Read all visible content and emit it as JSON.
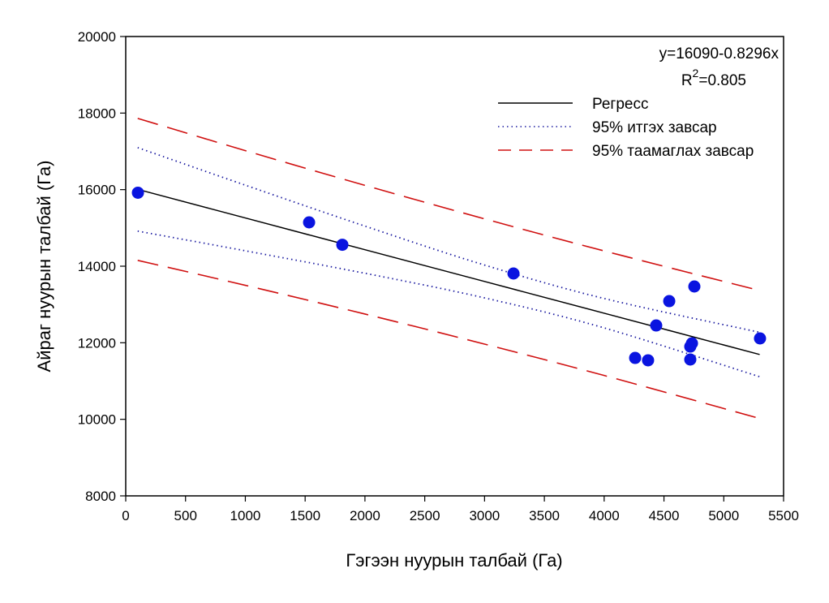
{
  "chart_data": {
    "type": "scatter",
    "xlabel": "Гэгээн нуурын талбай (Га)",
    "ylabel": "Айраг нуурын талбай (Га)",
    "xlim": [
      0,
      5500
    ],
    "ylim": [
      8000,
      20000
    ],
    "xticks": [
      0,
      500,
      1000,
      1500,
      2000,
      2500,
      3000,
      3500,
      4000,
      4500,
      5000,
      5500
    ],
    "yticks": [
      8000,
      10000,
      12000,
      14000,
      16000,
      18000,
      20000
    ],
    "grid": false,
    "equation": "y=16090-0.8296x",
    "r2_label": "R",
    "r2_sup": "2",
    "r2_value": "=0.805",
    "legend_position": "top-right",
    "points": {
      "color": "#0a14e0",
      "x": [
        102,
        1533,
        1811,
        3242,
        4754,
        4544,
        4435,
        4734,
        4720,
        4720,
        4259,
        4367,
        5303
      ],
      "y": [
        15920,
        15145,
        14560,
        13809,
        13470,
        13088,
        12452,
        11986,
        11900,
        11562,
        11604,
        11541,
        12113
      ]
    },
    "series": [
      {
        "name": "Регресс",
        "style": "solid",
        "color": "#000000",
        "x": [
          100,
          1000,
          2000,
          3000,
          4000,
          5300
        ],
        "y": [
          16007,
          15260,
          14431,
          13601,
          12772,
          11693
        ]
      },
      {
        "name": "95% итгэх завсар",
        "style": "dotted",
        "color": "#1a1aa0",
        "x": [
          100,
          1000,
          2000,
          3000,
          4000,
          5300
        ],
        "y": [
          17097,
          16117,
          15047,
          14030,
          13156,
          12273
        ],
        "y_lower": [
          14917,
          14403,
          13815,
          13172,
          12388,
          11113
        ]
      },
      {
        "name": "95% таамаглах завсар",
        "style": "dashed",
        "color": "#d01010",
        "x": [
          100,
          1000,
          2000,
          3000,
          4000,
          5300
        ],
        "y": [
          17862,
          17019,
          16112,
          15237,
          14399,
          13364
        ],
        "y_lower": [
          14152,
          13501,
          12750,
          11965,
          11145,
          10022
        ]
      }
    ]
  }
}
